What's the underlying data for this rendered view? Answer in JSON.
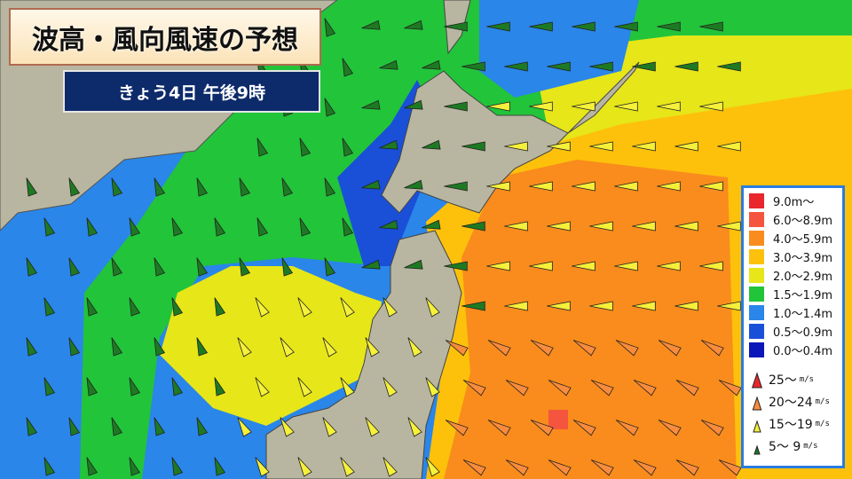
{
  "title": "波高・風向風速の予想",
  "subtitle": "きょう4日 午後9時",
  "wave_legend": [
    {
      "label": "9.0m〜",
      "color": "#e8262b"
    },
    {
      "label": "6.0〜8.9m",
      "color": "#f5553e"
    },
    {
      "label": "4.0〜5.9m",
      "color": "#f98c1c"
    },
    {
      "label": "3.0〜3.9m",
      "color": "#fdc10b"
    },
    {
      "label": "2.0〜2.9m",
      "color": "#e6e619"
    },
    {
      "label": "1.5〜1.9m",
      "color": "#22c43a"
    },
    {
      "label": "1.0〜1.4m",
      "color": "#2a86e8"
    },
    {
      "label": "0.5〜0.9m",
      "color": "#1a4fd8"
    },
    {
      "label": "0.0〜0.4m",
      "color": "#0b17b8"
    }
  ],
  "wind_legend": [
    {
      "label": "25〜",
      "unit": "m/s",
      "color": "#e8262b"
    },
    {
      "label": "20〜24",
      "unit": "m/s",
      "color": "#f98c3c"
    },
    {
      "label": "15〜19",
      "unit": "m/s",
      "color": "#f5f03a"
    },
    {
      "label": "5〜 9",
      "unit": "m/s",
      "color": "#1e7a22"
    }
  ],
  "colors": {
    "land": "#b8b6a0",
    "sea_frame": "#1f6fe0"
  }
}
